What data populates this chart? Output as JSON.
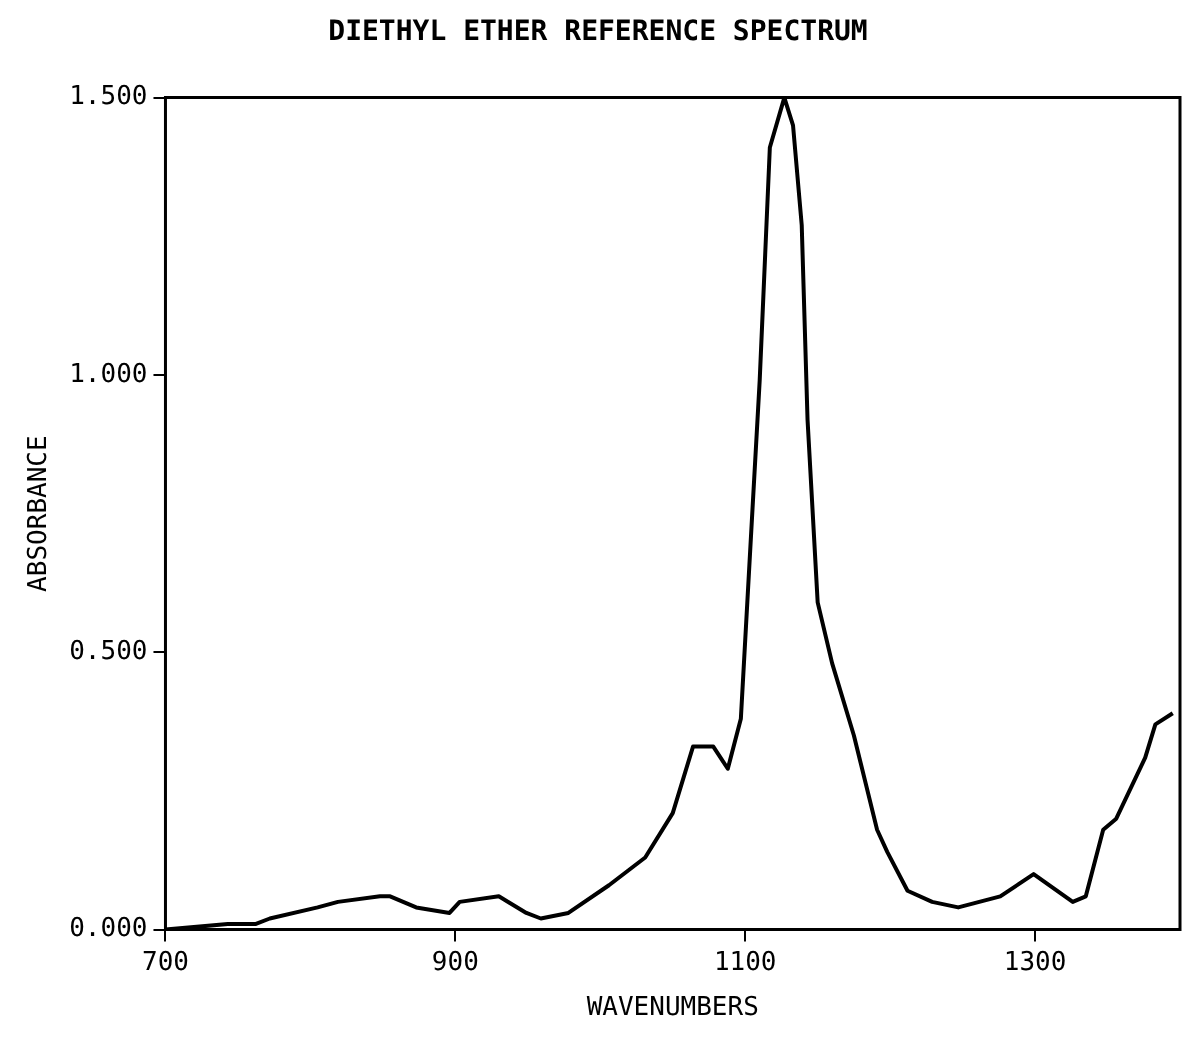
{
  "chart_data": {
    "type": "line",
    "title": "DIETHYL ETHER REFERENCE SPECTRUM",
    "xlabel": "WAVENUMBERS",
    "ylabel": "ABSORBANCE",
    "color": "#000000",
    "x": [
      700,
      743,
      762,
      772,
      805,
      819,
      848,
      855,
      873,
      896,
      903,
      930,
      949,
      959,
      978,
      1006,
      1031,
      1050,
      1064,
      1078,
      1088,
      1097,
      1104,
      1110,
      1117,
      1127,
      1133,
      1139,
      1143,
      1150,
      1160,
      1175,
      1191,
      1198,
      1212,
      1229,
      1247,
      1276,
      1299,
      1326,
      1335,
      1347,
      1356,
      1376,
      1383,
      1395
    ],
    "values": [
      0,
      0.01,
      0.01,
      0.02,
      0.04,
      0.05,
      0.06,
      0.06,
      0.04,
      0.03,
      0.05,
      0.06,
      0.03,
      0.02,
      0.03,
      0.08,
      0.13,
      0.21,
      0.33,
      0.33,
      0.29,
      0.38,
      0.71,
      0.99,
      1.41,
      1.5,
      1.45,
      1.27,
      0.92,
      0.59,
      0.48,
      0.35,
      0.18,
      0.14,
      0.07,
      0.05,
      0.04,
      0.06,
      0.1,
      0.05,
      0.06,
      0.18,
      0.2,
      0.31,
      0.37,
      0.39
    ],
    "xlim": [
      700,
      1400
    ],
    "xticks": [
      700,
      900,
      1100,
      1300
    ],
    "ylim": [
      0,
      1.5
    ],
    "yticks": [
      {
        "value": 0,
        "label": "0.000"
      },
      {
        "value": 0.5,
        "label": "0.500"
      },
      {
        "value": 1,
        "label": "1.000"
      },
      {
        "value": 1.5,
        "label": "1.500"
      }
    ],
    "grid": false,
    "legend": false,
    "marker": "none",
    "line_style": "solid"
  }
}
